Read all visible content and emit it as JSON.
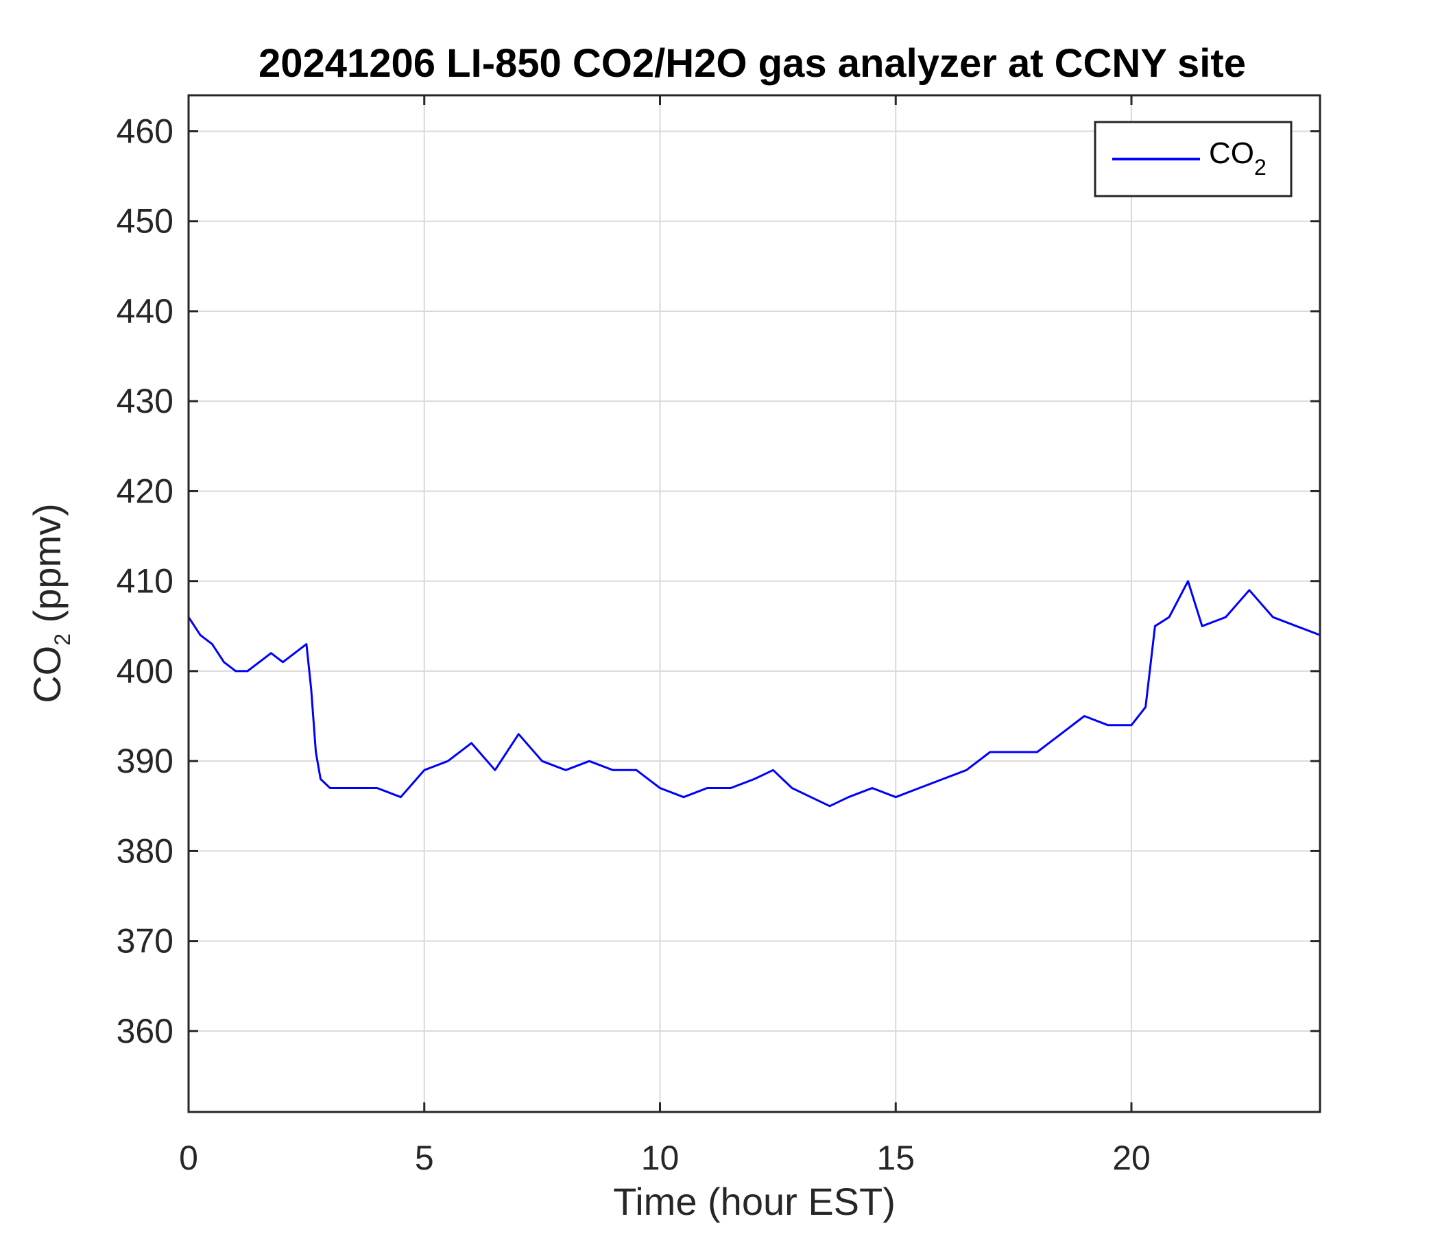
{
  "chart_data": {
    "type": "line",
    "title": "20241206 LI-850 CO2/H2O gas analyzer at CCNY site",
    "xlabel": "Time (hour EST)",
    "ylabel": {
      "base": "CO",
      "sub": "2",
      "rest": " (ppmv)"
    },
    "xlim": [
      0,
      24
    ],
    "ylim": [
      351,
      464
    ],
    "xticks": [
      0,
      5,
      10,
      15,
      20
    ],
    "yticks": [
      360,
      370,
      380,
      390,
      400,
      410,
      420,
      430,
      440,
      450,
      460
    ],
    "grid": true,
    "legend_position": "top-right",
    "series": [
      {
        "name": {
          "base": "CO",
          "sub": "2"
        },
        "color": "#0000ff",
        "x": [
          0.0,
          0.25,
          0.5,
          0.75,
          1.0,
          1.25,
          1.5,
          1.75,
          2.0,
          2.25,
          2.5,
          2.6,
          2.7,
          2.8,
          3.0,
          3.5,
          4.0,
          4.5,
          5.0,
          5.5,
          6.0,
          6.5,
          7.0,
          7.5,
          8.0,
          8.5,
          9.0,
          9.5,
          10.0,
          10.5,
          11.0,
          11.5,
          12.0,
          12.4,
          12.8,
          13.2,
          13.6,
          14.0,
          14.5,
          15.0,
          15.5,
          16.0,
          16.5,
          17.0,
          17.5,
          18.0,
          18.5,
          19.0,
          19.5,
          20.0,
          20.3,
          20.5,
          20.8,
          21.0,
          21.2,
          21.5,
          22.0,
          22.5,
          23.0,
          23.5,
          24.0
        ],
        "values": [
          406,
          404,
          403,
          401,
          400,
          400,
          401,
          402,
          401,
          402,
          403,
          398,
          391,
          388,
          387,
          387,
          387,
          386,
          389,
          390,
          392,
          389,
          393,
          390,
          389,
          390,
          389,
          389,
          387,
          386,
          387,
          387,
          388,
          389,
          387,
          386,
          385,
          386,
          387,
          386,
          387,
          388,
          389,
          391,
          391,
          391,
          393,
          395,
          394,
          394,
          396,
          405,
          406,
          408,
          410,
          405,
          406,
          409,
          406,
          405,
          404
        ]
      }
    ]
  }
}
